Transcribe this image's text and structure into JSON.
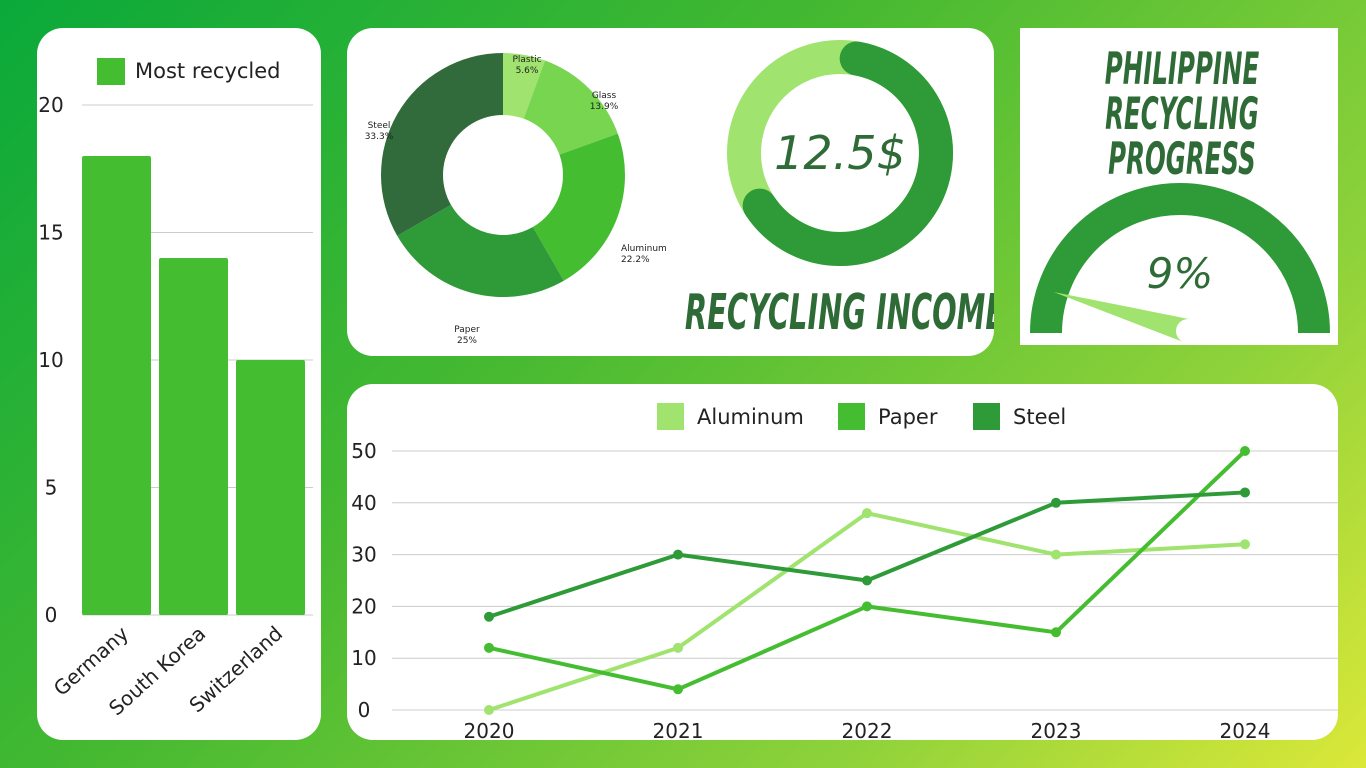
{
  "colors": {
    "light_green": "#a0e36e",
    "mid_green": "#45bd31",
    "green": "#2e9a38",
    "dark_green": "#316b3b",
    "title_green": "#2f6b37",
    "grid": "#cccccc"
  },
  "chart_data": [
    {
      "id": "most-recycled",
      "type": "bar",
      "legend": [
        "Most recycled"
      ],
      "legend_position": "top",
      "categories": [
        "Germany",
        "South Korea",
        "Switzerland"
      ],
      "series": [
        {
          "name": "Most recycled",
          "values": [
            18,
            14,
            10
          ]
        }
      ],
      "yticks": [
        "0",
        "5",
        "10",
        "15",
        "20"
      ],
      "ylim": [
        0,
        20
      ],
      "grid": true
    },
    {
      "id": "materials",
      "type": "pie",
      "slices": [
        {
          "label": "Plastic",
          "value": 5.6,
          "text": "5.6%"
        },
        {
          "label": "Glass",
          "value": 13.9,
          "text": "13.9%"
        },
        {
          "label": "Aluminum",
          "value": 22.2,
          "text": "22.2%"
        },
        {
          "label": "Paper",
          "value": 25,
          "text": "25%"
        },
        {
          "label": "Steel",
          "value": 33.3,
          "text": "33.3%"
        }
      ]
    },
    {
      "id": "income",
      "type": "pie",
      "value_text": "12.5$",
      "title": "RECYCLING INCOME",
      "fraction": 0.63
    },
    {
      "id": "progress",
      "type": "gauge",
      "title": "PHILIPPINE RECYCLING PROGRESS",
      "value": 9,
      "value_text": "9%"
    },
    {
      "id": "materials-trend",
      "type": "line",
      "x": [
        "2020",
        "2021",
        "2022",
        "2023",
        "2024"
      ],
      "series": [
        {
          "name": "Aluminum",
          "values": [
            0,
            12,
            38,
            30,
            32
          ]
        },
        {
          "name": "Paper",
          "values": [
            12,
            4,
            20,
            15,
            50
          ]
        },
        {
          "name": "Steel",
          "values": [
            18,
            30,
            25,
            40,
            42
          ]
        }
      ],
      "yticks": [
        "0",
        "10",
        "20",
        "30",
        "40",
        "50"
      ],
      "ylim": [
        0,
        50
      ],
      "grid": true,
      "legend_position": "top"
    }
  ]
}
